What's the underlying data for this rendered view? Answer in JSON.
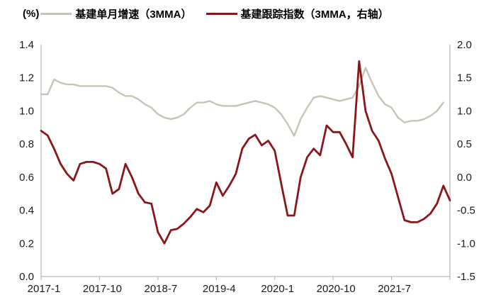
{
  "chart_data": {
    "type": "line",
    "unit_label": "(%)",
    "x": [
      "2017-1",
      "2017-2",
      "2017-3",
      "2017-4",
      "2017-5",
      "2017-6",
      "2017-7",
      "2017-8",
      "2017-9",
      "2017-10",
      "2017-11",
      "2017-12",
      "2018-1",
      "2018-2",
      "2018-3",
      "2018-4",
      "2018-5",
      "2018-6",
      "2018-7",
      "2018-8",
      "2018-9",
      "2018-10",
      "2018-11",
      "2018-12",
      "2019-1",
      "2019-2",
      "2019-3",
      "2019-4",
      "2019-5",
      "2019-6",
      "2019-7",
      "2019-8",
      "2019-9",
      "2019-10",
      "2019-11",
      "2019-12",
      "2020-1",
      "2020-2",
      "2020-3",
      "2020-4",
      "2020-5",
      "2020-6",
      "2020-7",
      "2020-8",
      "2020-9",
      "2020-10",
      "2020-11",
      "2020-12",
      "2021-1",
      "2021-2",
      "2021-3",
      "2021-4",
      "2021-5",
      "2021-6",
      "2021-7",
      "2021-8",
      "2021-9",
      "2021-10",
      "2021-11",
      "2021-12",
      "2022-1",
      "2022-2",
      "2022-3",
      "2022-4"
    ],
    "x_tick_indices": [
      0,
      9,
      18,
      27,
      36,
      45,
      54
    ],
    "x_tick_labels": [
      "2017-1",
      "2017-10",
      "2018-7",
      "2019-4",
      "2020-1",
      "2020-10",
      "2021-7"
    ],
    "left_axis": {
      "min": 0.0,
      "max": 1.4,
      "ticks": [
        "0.0",
        "0.2",
        "0.4",
        "0.6",
        "0.8",
        "1.0",
        "1.2",
        "1.4"
      ]
    },
    "right_axis": {
      "min": -1.5,
      "max": 2.0,
      "ticks": [
        "-1.5",
        "-1.0",
        "-0.5",
        "0.0",
        "0.5",
        "1.0",
        "1.5",
        "2.0"
      ]
    },
    "series": [
      {
        "name": "基建单月增速（3MMA）",
        "axis": "left",
        "color": "#C6C5B4",
        "width": 2.4,
        "values": [
          1.1,
          1.1,
          1.19,
          1.17,
          1.16,
          1.16,
          1.15,
          1.15,
          1.15,
          1.15,
          1.15,
          1.14,
          1.11,
          1.09,
          1.09,
          1.07,
          1.04,
          1.02,
          0.98,
          0.96,
          0.95,
          0.96,
          0.98,
          1.02,
          1.05,
          1.05,
          1.06,
          1.04,
          1.03,
          1.03,
          1.03,
          1.04,
          1.05,
          1.06,
          1.05,
          1.04,
          1.02,
          0.98,
          0.92,
          0.85,
          0.95,
          1.02,
          1.08,
          1.09,
          1.08,
          1.07,
          1.06,
          1.07,
          1.08,
          1.15,
          1.26,
          1.17,
          1.09,
          1.04,
          1.02,
          0.96,
          0.93,
          0.94,
          0.94,
          0.95,
          0.97,
          1.0,
          1.05,
          null
        ]
      },
      {
        "name": "基建跟踪指数（3MMA，右轴）",
        "axis": "right",
        "color": "#8A161A",
        "width": 2.8,
        "values": [
          0.7,
          0.63,
          0.43,
          0.2,
          0.05,
          -0.05,
          0.2,
          0.23,
          0.23,
          0.2,
          0.13,
          -0.25,
          -0.18,
          0.2,
          0.0,
          -0.25,
          -0.38,
          -0.4,
          -0.83,
          -1.0,
          -0.8,
          -0.78,
          -0.7,
          -0.6,
          -0.48,
          -0.53,
          -0.43,
          -0.08,
          -0.28,
          -0.13,
          0.05,
          0.43,
          0.58,
          0.64,
          0.48,
          0.55,
          0.4,
          -0.1,
          -0.58,
          -0.58,
          0.0,
          0.3,
          0.43,
          0.33,
          0.78,
          0.68,
          0.68,
          0.5,
          0.3,
          1.75,
          1.0,
          0.7,
          0.55,
          0.28,
          0.05,
          -0.3,
          -0.65,
          -0.68,
          -0.68,
          -0.63,
          -0.55,
          -0.4,
          -0.13,
          -0.35
        ]
      }
    ],
    "grid": false,
    "legend_position": "top",
    "axis_color": "#A9A9A9",
    "label_color": "#1A1A1A"
  }
}
